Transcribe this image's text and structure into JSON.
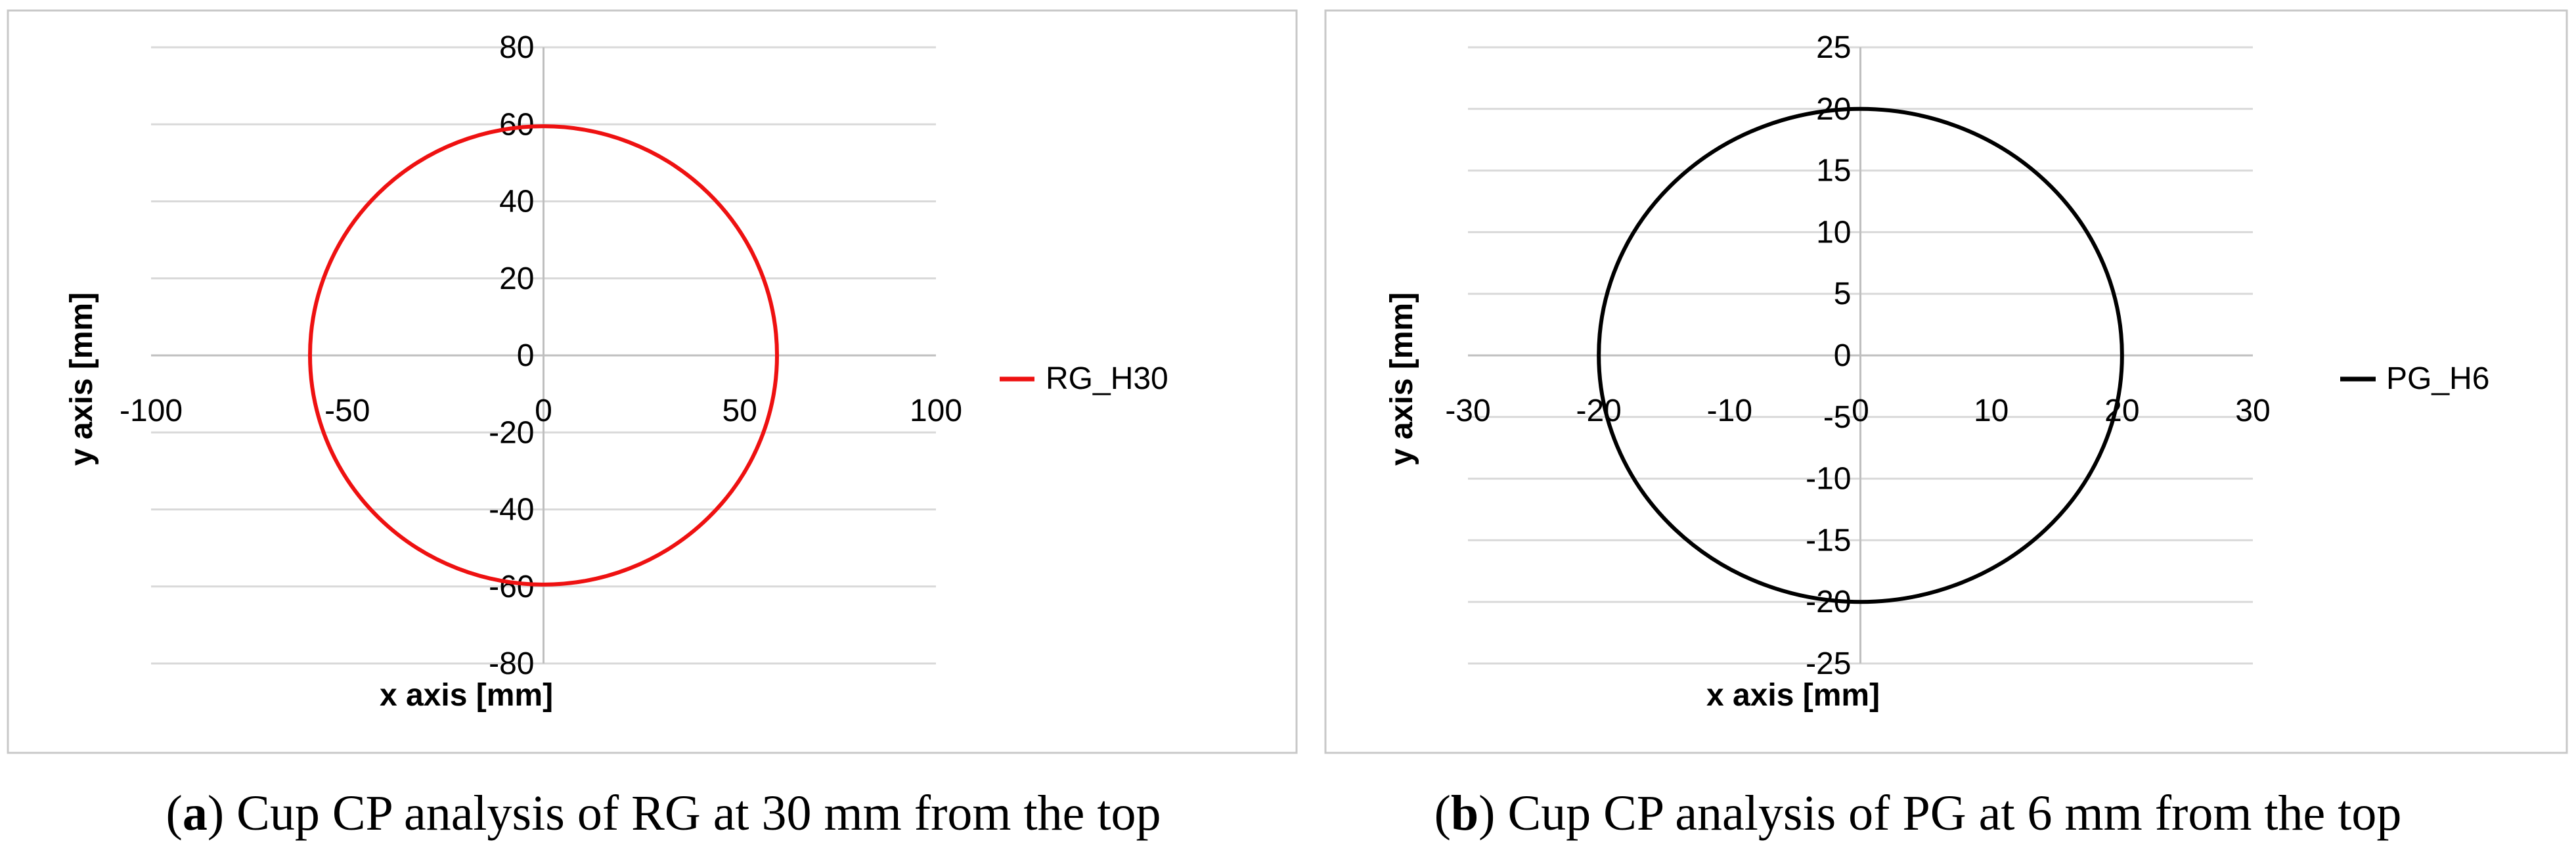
{
  "chart_data": [
    {
      "type": "scatter",
      "panel": "a",
      "title": "",
      "xlabel": "x axis [mm]",
      "ylabel": "y axis [mm]",
      "xlim": [
        -100,
        100
      ],
      "ylim": [
        -80,
        80
      ],
      "x_ticks": [
        -100,
        -50,
        0,
        50,
        100
      ],
      "y_ticks": [
        80,
        60,
        40,
        20,
        0,
        -20,
        -40,
        -60,
        -80
      ],
      "grid": "horizontal",
      "legend_position": "right",
      "series": [
        {
          "name": "RG_H30",
          "color": "#ee1111",
          "shape": "circle",
          "center": [
            0,
            0
          ],
          "radius": 59.5
        }
      ],
      "caption": {
        "label": "a",
        "text": "Cup CP analysis of RG at 30 mm from the top"
      }
    },
    {
      "type": "scatter",
      "panel": "b",
      "title": "",
      "xlabel": "x axis [mm]",
      "ylabel": "y axis [mm]",
      "xlim": [
        -30,
        30
      ],
      "ylim": [
        -25,
        25
      ],
      "x_ticks": [
        -30,
        -20,
        -10,
        0,
        10,
        20,
        30
      ],
      "y_ticks": [
        25,
        20,
        15,
        10,
        5,
        0,
        -5,
        -10,
        -15,
        -20,
        -25
      ],
      "grid": "horizontal",
      "legend_position": "right",
      "series": [
        {
          "name": "PG_H6",
          "color": "#000000",
          "shape": "circle",
          "center": [
            0,
            0
          ],
          "radius": 20
        }
      ],
      "caption": {
        "label": "b",
        "text": "Cup CP analysis of PG at 6 mm from the top"
      }
    }
  ]
}
